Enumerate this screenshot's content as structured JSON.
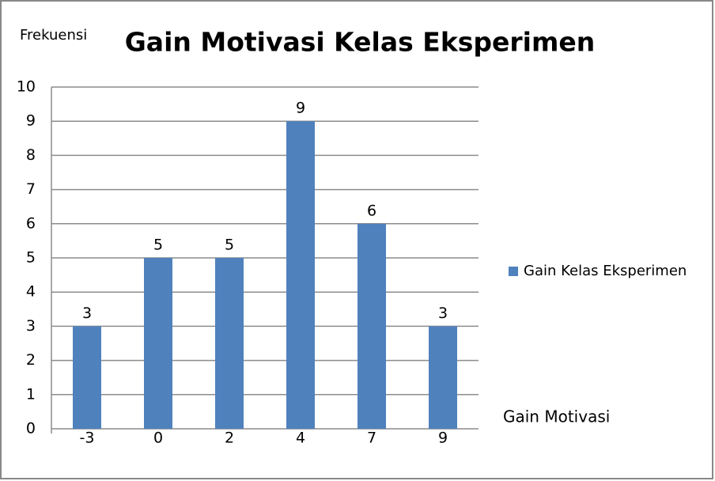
{
  "chart_data": {
    "type": "bar",
    "title": "Gain Motivasi Kelas Eksperimen",
    "y_label": "Frekuensi",
    "x_label": "Gain Motivasi",
    "categories": [
      "-3",
      "0",
      "2",
      "4",
      "7",
      "9"
    ],
    "series": [
      {
        "name": "Gain Kelas Eksperimen",
        "color": "#4f81bd",
        "values": [
          3,
          5,
          5,
          9,
          6,
          3
        ]
      }
    ],
    "ylim": [
      0,
      10
    ],
    "yticks": [
      0,
      1,
      2,
      3,
      4,
      5,
      6,
      7,
      8,
      9,
      10
    ],
    "grid": true,
    "legend": "right"
  }
}
